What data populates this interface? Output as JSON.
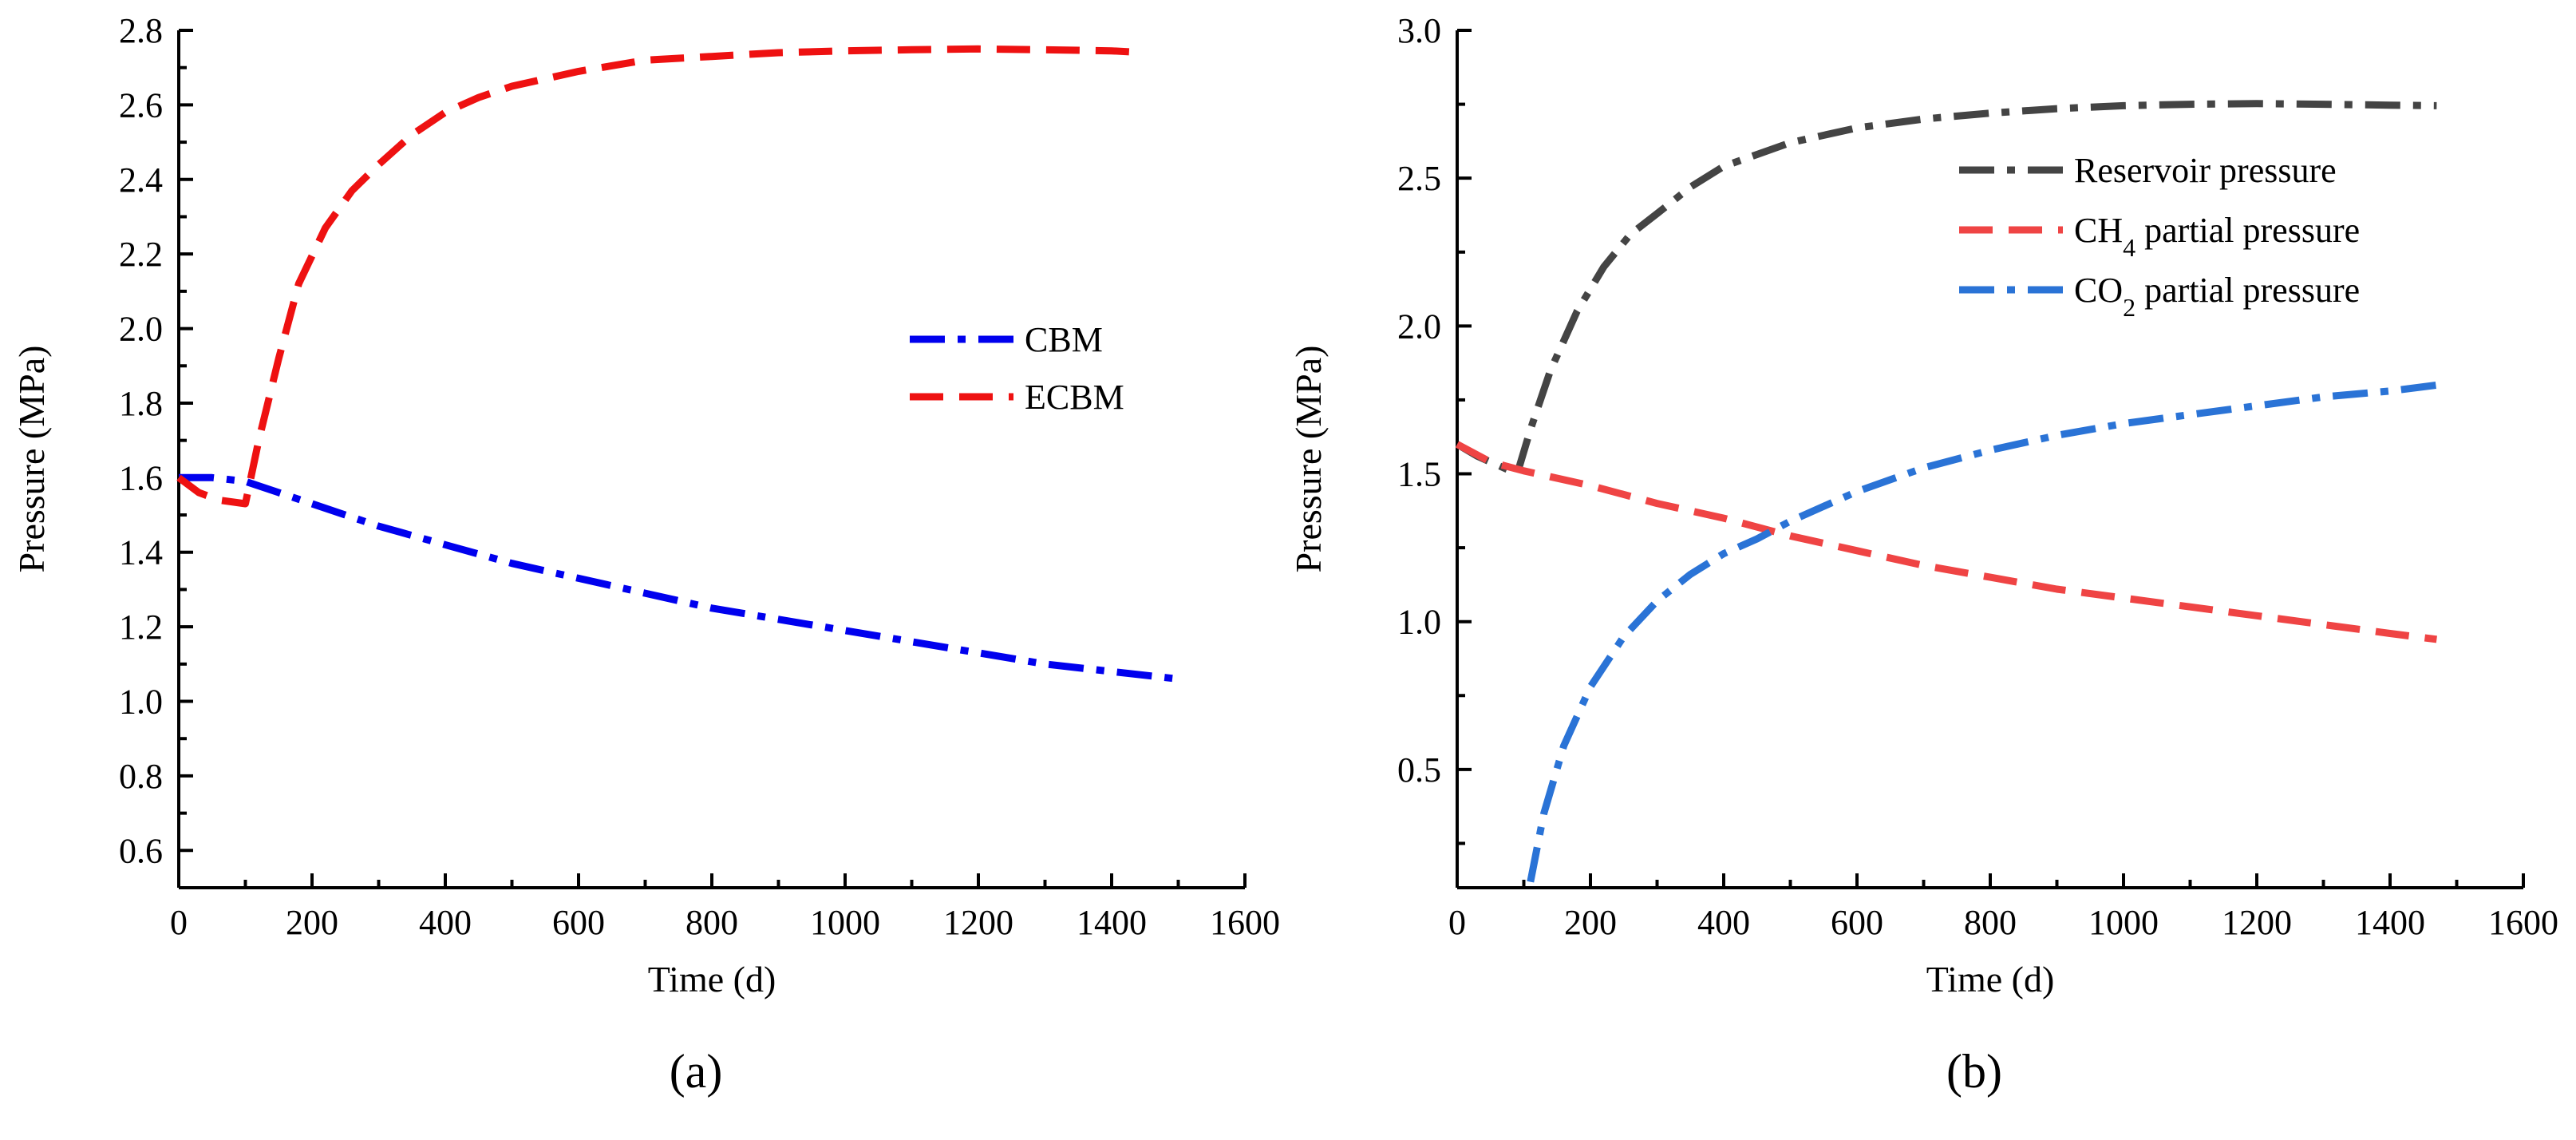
{
  "chart_data": [
    {
      "type": "line",
      "panel_label": "(a)",
      "xlabel": "Time (d)",
      "ylabel": "Pressure (MPa)",
      "xlim": [
        0,
        1600
      ],
      "ylim": [
        0.5,
        2.8
      ],
      "xticks": [
        0,
        200,
        400,
        600,
        800,
        1000,
        1200,
        1400,
        1600
      ],
      "xtick_labels": [
        "0",
        "200",
        "400",
        "600",
        "800",
        "1000",
        "1200",
        "1400",
        "1600"
      ],
      "yticks": [
        0.6,
        0.8,
        1.0,
        1.2,
        1.4,
        1.6,
        1.8,
        2.0,
        2.2,
        2.4,
        2.6,
        2.8
      ],
      "ytick_labels": [
        "0.6",
        "0.8",
        "1.0",
        "1.2",
        "1.4",
        "1.6",
        "1.8",
        "2.0",
        "2.2",
        "2.4",
        "2.6",
        "2.8"
      ],
      "legend_position": "center-right",
      "series": [
        {
          "name": "CBM",
          "label_html": "CBM",
          "color": "#0000ee",
          "style": "dashdot",
          "x": [
            0,
            50,
            100,
            150,
            200,
            300,
            400,
            500,
            600,
            700,
            800,
            900,
            1000,
            1100,
            1200,
            1300,
            1400,
            1500
          ],
          "y": [
            1.6,
            1.6,
            1.59,
            1.56,
            1.53,
            1.47,
            1.42,
            1.37,
            1.33,
            1.29,
            1.25,
            1.22,
            1.19,
            1.16,
            1.13,
            1.1,
            1.08,
            1.06
          ]
        },
        {
          "name": "ECBM",
          "label_html": "ECBM",
          "color": "#ee1111",
          "style": "dashed",
          "x": [
            0,
            30,
            60,
            100,
            120,
            150,
            180,
            220,
            260,
            300,
            350,
            400,
            450,
            500,
            600,
            700,
            800,
            900,
            1000,
            1100,
            1200,
            1300,
            1400,
            1450
          ],
          "y": [
            1.6,
            1.56,
            1.54,
            1.53,
            1.7,
            1.92,
            2.12,
            2.27,
            2.37,
            2.44,
            2.52,
            2.58,
            2.62,
            2.65,
            2.69,
            2.72,
            2.73,
            2.74,
            2.745,
            2.748,
            2.75,
            2.748,
            2.745,
            2.74
          ]
        }
      ]
    },
    {
      "type": "line",
      "panel_label": "(b)",
      "xlabel": "Time (d)",
      "ylabel": "Pressure (MPa)",
      "xlim": [
        0,
        1600
      ],
      "ylim": [
        0.1,
        3.0
      ],
      "xticks": [
        0,
        200,
        400,
        600,
        800,
        1000,
        1200,
        1400,
        1600
      ],
      "xtick_labels": [
        "0",
        "200",
        "400",
        "600",
        "800",
        "1000",
        "1200",
        "1400",
        "1600"
      ],
      "yticks": [
        0.5,
        1.0,
        1.5,
        2.0,
        2.5,
        3.0
      ],
      "ytick_labels": [
        "0.5",
        "1.0",
        "1.5",
        "2.0",
        "2.5",
        "3.0"
      ],
      "legend_position": "top-right",
      "series": [
        {
          "name": "Reservoir pressure",
          "label_html": "Reservoir pressure",
          "color": "#444444",
          "style": "dashdot",
          "x": [
            0,
            30,
            60,
            90,
            110,
            140,
            180,
            220,
            260,
            300,
            350,
            400,
            450,
            500,
            600,
            700,
            800,
            900,
            1000,
            1100,
            1200,
            1300,
            1400,
            1470
          ],
          "y": [
            1.6,
            1.56,
            1.53,
            1.5,
            1.65,
            1.85,
            2.05,
            2.2,
            2.31,
            2.38,
            2.47,
            2.54,
            2.58,
            2.62,
            2.67,
            2.7,
            2.72,
            2.735,
            2.745,
            2.75,
            2.752,
            2.75,
            2.747,
            2.745
          ]
        },
        {
          "name": "CH4 partial pressure",
          "label_html": "CH<tspan baseline-shift=\"sub\" font-size=\"32\">4</tspan> partial pressure",
          "color": "#ef4444",
          "style": "dashed",
          "x": [
            0,
            50,
            100,
            200,
            300,
            400,
            500,
            600,
            700,
            800,
            900,
            1000,
            1100,
            1200,
            1300,
            1400,
            1470
          ],
          "y": [
            1.6,
            1.54,
            1.51,
            1.46,
            1.4,
            1.35,
            1.29,
            1.24,
            1.19,
            1.15,
            1.11,
            1.08,
            1.05,
            1.02,
            0.99,
            0.96,
            0.94
          ]
        },
        {
          "name": "CO2 partial pressure",
          "label_html": "CO<tspan baseline-shift=\"sub\" font-size=\"32\">2</tspan> partial pressure",
          "color": "#2a73d6",
          "style": "dashdot",
          "x": [
            110,
            130,
            160,
            200,
            250,
            300,
            350,
            400,
            450,
            500,
            600,
            700,
            800,
            900,
            1000,
            1100,
            1200,
            1300,
            1400,
            1470
          ],
          "y": [
            0.12,
            0.35,
            0.58,
            0.78,
            0.95,
            1.07,
            1.16,
            1.23,
            1.28,
            1.34,
            1.44,
            1.52,
            1.58,
            1.63,
            1.67,
            1.7,
            1.73,
            1.76,
            1.78,
            1.8
          ]
        }
      ]
    }
  ]
}
